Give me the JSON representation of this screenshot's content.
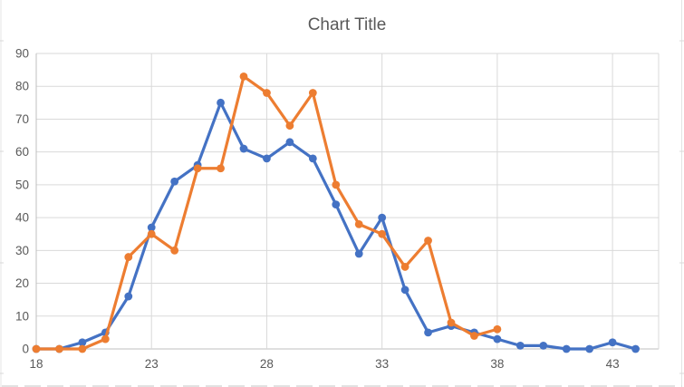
{
  "chart_data": {
    "type": "line",
    "title": "Chart Title",
    "xlabel": "",
    "ylabel": "",
    "xlim": [
      18,
      45
    ],
    "ylim": [
      0,
      90
    ],
    "x_ticks": [
      18,
      23,
      28,
      33,
      38,
      43
    ],
    "y_ticks": [
      0,
      10,
      20,
      30,
      40,
      50,
      60,
      70,
      80,
      90
    ],
    "grid": true,
    "legend_position": "none",
    "marker": "circle",
    "series": [
      {
        "name": "series-1-blue",
        "color": "#4472C4",
        "x": [
          18,
          19,
          20,
          21,
          22,
          23,
          24,
          25,
          26,
          27,
          28,
          29,
          30,
          31,
          32,
          33,
          34,
          35,
          36,
          37,
          38,
          39,
          40,
          41,
          42,
          43,
          44
        ],
        "values": [
          0,
          0,
          2,
          5,
          16,
          37,
          51,
          56,
          75,
          61,
          58,
          63,
          58,
          44,
          29,
          40,
          18,
          5,
          7,
          5,
          3,
          1,
          1,
          0,
          0,
          2,
          0
        ]
      },
      {
        "name": "series-2-orange",
        "color": "#ED7D31",
        "x": [
          18,
          19,
          20,
          21,
          22,
          23,
          24,
          25,
          26,
          27,
          28,
          29,
          30,
          31,
          32,
          33,
          34,
          35,
          36,
          37,
          38
        ],
        "values": [
          0,
          0,
          0,
          3,
          28,
          35,
          30,
          55,
          55,
          83,
          78,
          68,
          78,
          50,
          38,
          35,
          25,
          33,
          8,
          4,
          6
        ]
      }
    ],
    "colors": {
      "gridline": "#D9D9D9",
      "axis_line": "#BFBFBF",
      "plot_border": "#D9D9D9",
      "tick_label": "#595959",
      "title": "#595959",
      "sheet_edge": "#E4E4E4",
      "sheet_tick": "#D9D9D9"
    }
  }
}
